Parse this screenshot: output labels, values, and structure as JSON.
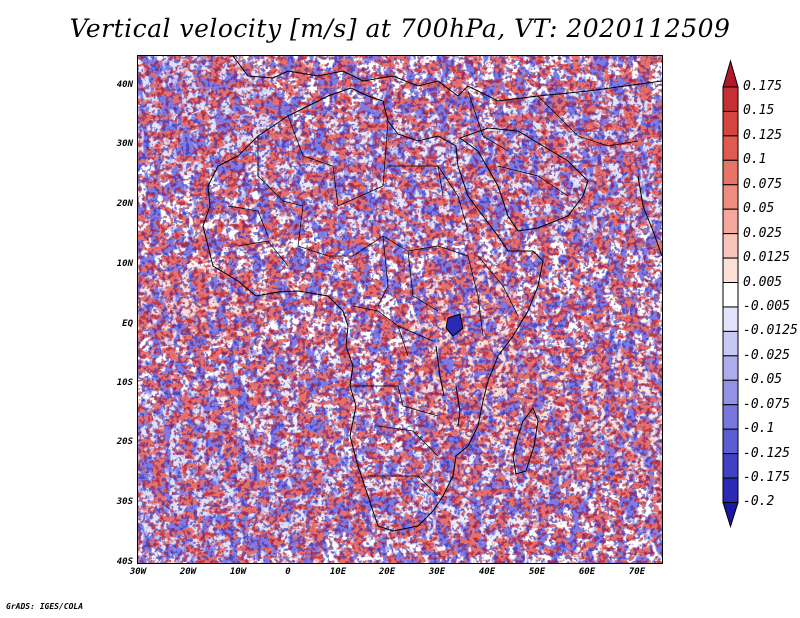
{
  "title": "Vertical velocity [m/s] at 700hPa, VT: 2020112509",
  "credit": "GrADS: IGES/COLA",
  "lat_labels": [
    "40N",
    "30N",
    "20N",
    "10N",
    "EQ",
    "10S",
    "20S",
    "30S",
    "40S"
  ],
  "lon_labels": [
    "30W",
    "20W",
    "10W",
    "0",
    "10E",
    "20E",
    "30E",
    "40E",
    "50E",
    "60E",
    "70E"
  ],
  "colorbar": {
    "labels": [
      "0.175",
      "0.15",
      "0.125",
      "0.1",
      "0.075",
      "0.05",
      "0.025",
      "0.0125",
      "0.005",
      "-0.005",
      "-0.0125",
      "-0.025",
      "-0.05",
      "-0.075",
      "-0.1",
      "-0.125",
      "-0.175",
      "-0.2"
    ],
    "colors": [
      "#b2182b",
      "#c62f33",
      "#d6443f",
      "#e05a52",
      "#e87468",
      "#ef8c80",
      "#f4a79a",
      "#f8c3b8",
      "#fbe0d8",
      "#ffffff",
      "#e3e3fb",
      "#c8c8f4",
      "#adadee",
      "#9292e6",
      "#7777dd",
      "#5c5cd3",
      "#4141c6",
      "#2a2ab4",
      "#1818a0"
    ]
  },
  "map_colors": {
    "ocean": "#ffffff",
    "coast": "#000000",
    "border": "#000000"
  }
}
